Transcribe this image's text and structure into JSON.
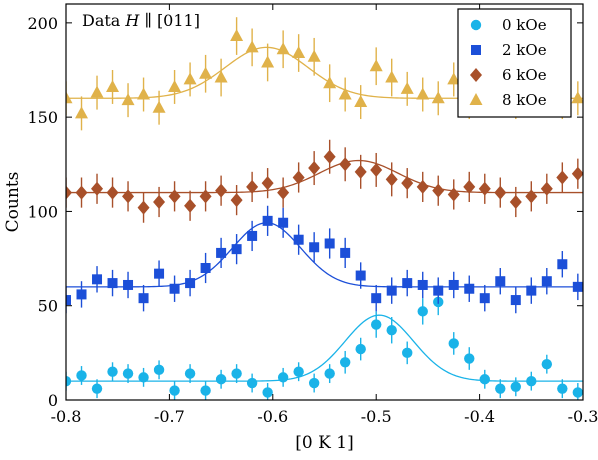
{
  "chart_data": {
    "type": "scatter",
    "title": "",
    "annotation": {
      "prefix": "Data ",
      "variable": "H",
      "relation": " ∥ ",
      "direction": "[011]"
    },
    "xlabel": "[0 K 1]",
    "ylabel": "Counts",
    "xlim": [
      -0.8,
      -0.3
    ],
    "ylim": [
      0,
      210
    ],
    "xticks": [
      -0.8,
      -0.7,
      -0.6,
      -0.5,
      -0.4,
      -0.3
    ],
    "xtick_labels": [
      "-0.8",
      "-0.7",
      "-0.6",
      "-0.5",
      "-0.4",
      "-0.3"
    ],
    "yticks": [
      0,
      50,
      100,
      150,
      200
    ],
    "ytick_labels": [
      "0",
      "50",
      "100",
      "150",
      "200"
    ],
    "grid": false,
    "legend_position": "top-right",
    "x": [
      -0.8,
      -0.785,
      -0.77,
      -0.755,
      -0.74,
      -0.725,
      -0.71,
      -0.695,
      -0.68,
      -0.665,
      -0.65,
      -0.635,
      -0.62,
      -0.605,
      -0.59,
      -0.575,
      -0.56,
      -0.545,
      -0.53,
      -0.515,
      -0.5,
      -0.485,
      -0.47,
      -0.455,
      -0.44,
      -0.425,
      -0.41,
      -0.395,
      -0.38,
      -0.365,
      -0.35,
      -0.335,
      -0.32,
      -0.305
    ],
    "series": [
      {
        "name": "0 kOe",
        "color": "#1ab3e8",
        "marker": "circle",
        "y": [
          10,
          13,
          6,
          15,
          14,
          12,
          16,
          5,
          14,
          5,
          11,
          14,
          9,
          4,
          12,
          15,
          9,
          14,
          20,
          27,
          40,
          37,
          25,
          47,
          52,
          30,
          22,
          11,
          6,
          7,
          10,
          19,
          6,
          4
        ],
        "err": [
          5,
          5,
          5,
          5,
          5,
          5,
          5,
          5,
          5,
          5,
          5,
          5,
          5,
          5,
          5,
          5,
          5,
          5,
          6,
          6,
          7,
          7,
          6,
          7,
          7,
          6,
          6,
          5,
          5,
          5,
          5,
          5,
          5,
          5
        ],
        "fit": {
          "baseline": 10,
          "amplitude": 35,
          "center": -0.497,
          "sigma": 0.033
        }
      },
      {
        "name": "2 kOe",
        "color": "#1c4fd8",
        "marker": "square",
        "y": [
          53,
          56,
          64,
          62,
          61,
          54,
          67,
          59,
          62,
          70,
          78,
          80,
          87,
          95,
          94,
          85,
          81,
          83,
          78,
          66,
          54,
          58,
          62,
          61,
          58,
          61,
          59,
          54,
          63,
          53,
          58,
          63,
          72,
          60
        ],
        "err": [
          7,
          7,
          7,
          7,
          7,
          7,
          7,
          7,
          7,
          8,
          8,
          8,
          8,
          8,
          8,
          8,
          8,
          8,
          8,
          7,
          7,
          7,
          7,
          7,
          7,
          7,
          7,
          7,
          7,
          7,
          7,
          7,
          7,
          7
        ],
        "fit": {
          "baseline": 60,
          "amplitude": 34,
          "center": -0.606,
          "sigma": 0.033
        }
      },
      {
        "name": "6 kOe",
        "color": "#a8502a",
        "marker": "diamond",
        "y": [
          110,
          110,
          112,
          110,
          108,
          102,
          105,
          108,
          103,
          108,
          111,
          106,
          113,
          115,
          110,
          118,
          123,
          129,
          125,
          121,
          122,
          117,
          115,
          113,
          111,
          109,
          113,
          112,
          110,
          105,
          108,
          112,
          118,
          120
        ],
        "err": [
          8,
          8,
          8,
          8,
          8,
          8,
          8,
          8,
          8,
          8,
          8,
          8,
          8,
          8,
          8,
          8,
          9,
          9,
          9,
          9,
          9,
          9,
          8,
          8,
          8,
          8,
          8,
          8,
          8,
          8,
          8,
          8,
          8,
          8
        ],
        "fit": {
          "baseline": 110,
          "amplitude": 17,
          "center": -0.517,
          "sigma": 0.038
        }
      },
      {
        "name": "8 kOe",
        "color": "#e0b24a",
        "marker": "triangle",
        "y": [
          160,
          152,
          163,
          166,
          159,
          162,
          155,
          166,
          170,
          173,
          171,
          193,
          187,
          179,
          186,
          184,
          182,
          168,
          162,
          158,
          177,
          171,
          165,
          162,
          160,
          170,
          158,
          160,
          162,
          158,
          160,
          162,
          158,
          160
        ],
        "err": [
          9,
          9,
          9,
          9,
          9,
          9,
          9,
          9,
          9,
          10,
          10,
          10,
          10,
          10,
          10,
          10,
          10,
          10,
          9,
          9,
          10,
          10,
          9,
          9,
          9,
          9,
          9,
          9,
          9,
          9,
          9,
          9,
          9,
          9
        ],
        "fit": {
          "baseline": 160,
          "amplitude": 27,
          "center": -0.606,
          "sigma": 0.04
        }
      }
    ]
  }
}
